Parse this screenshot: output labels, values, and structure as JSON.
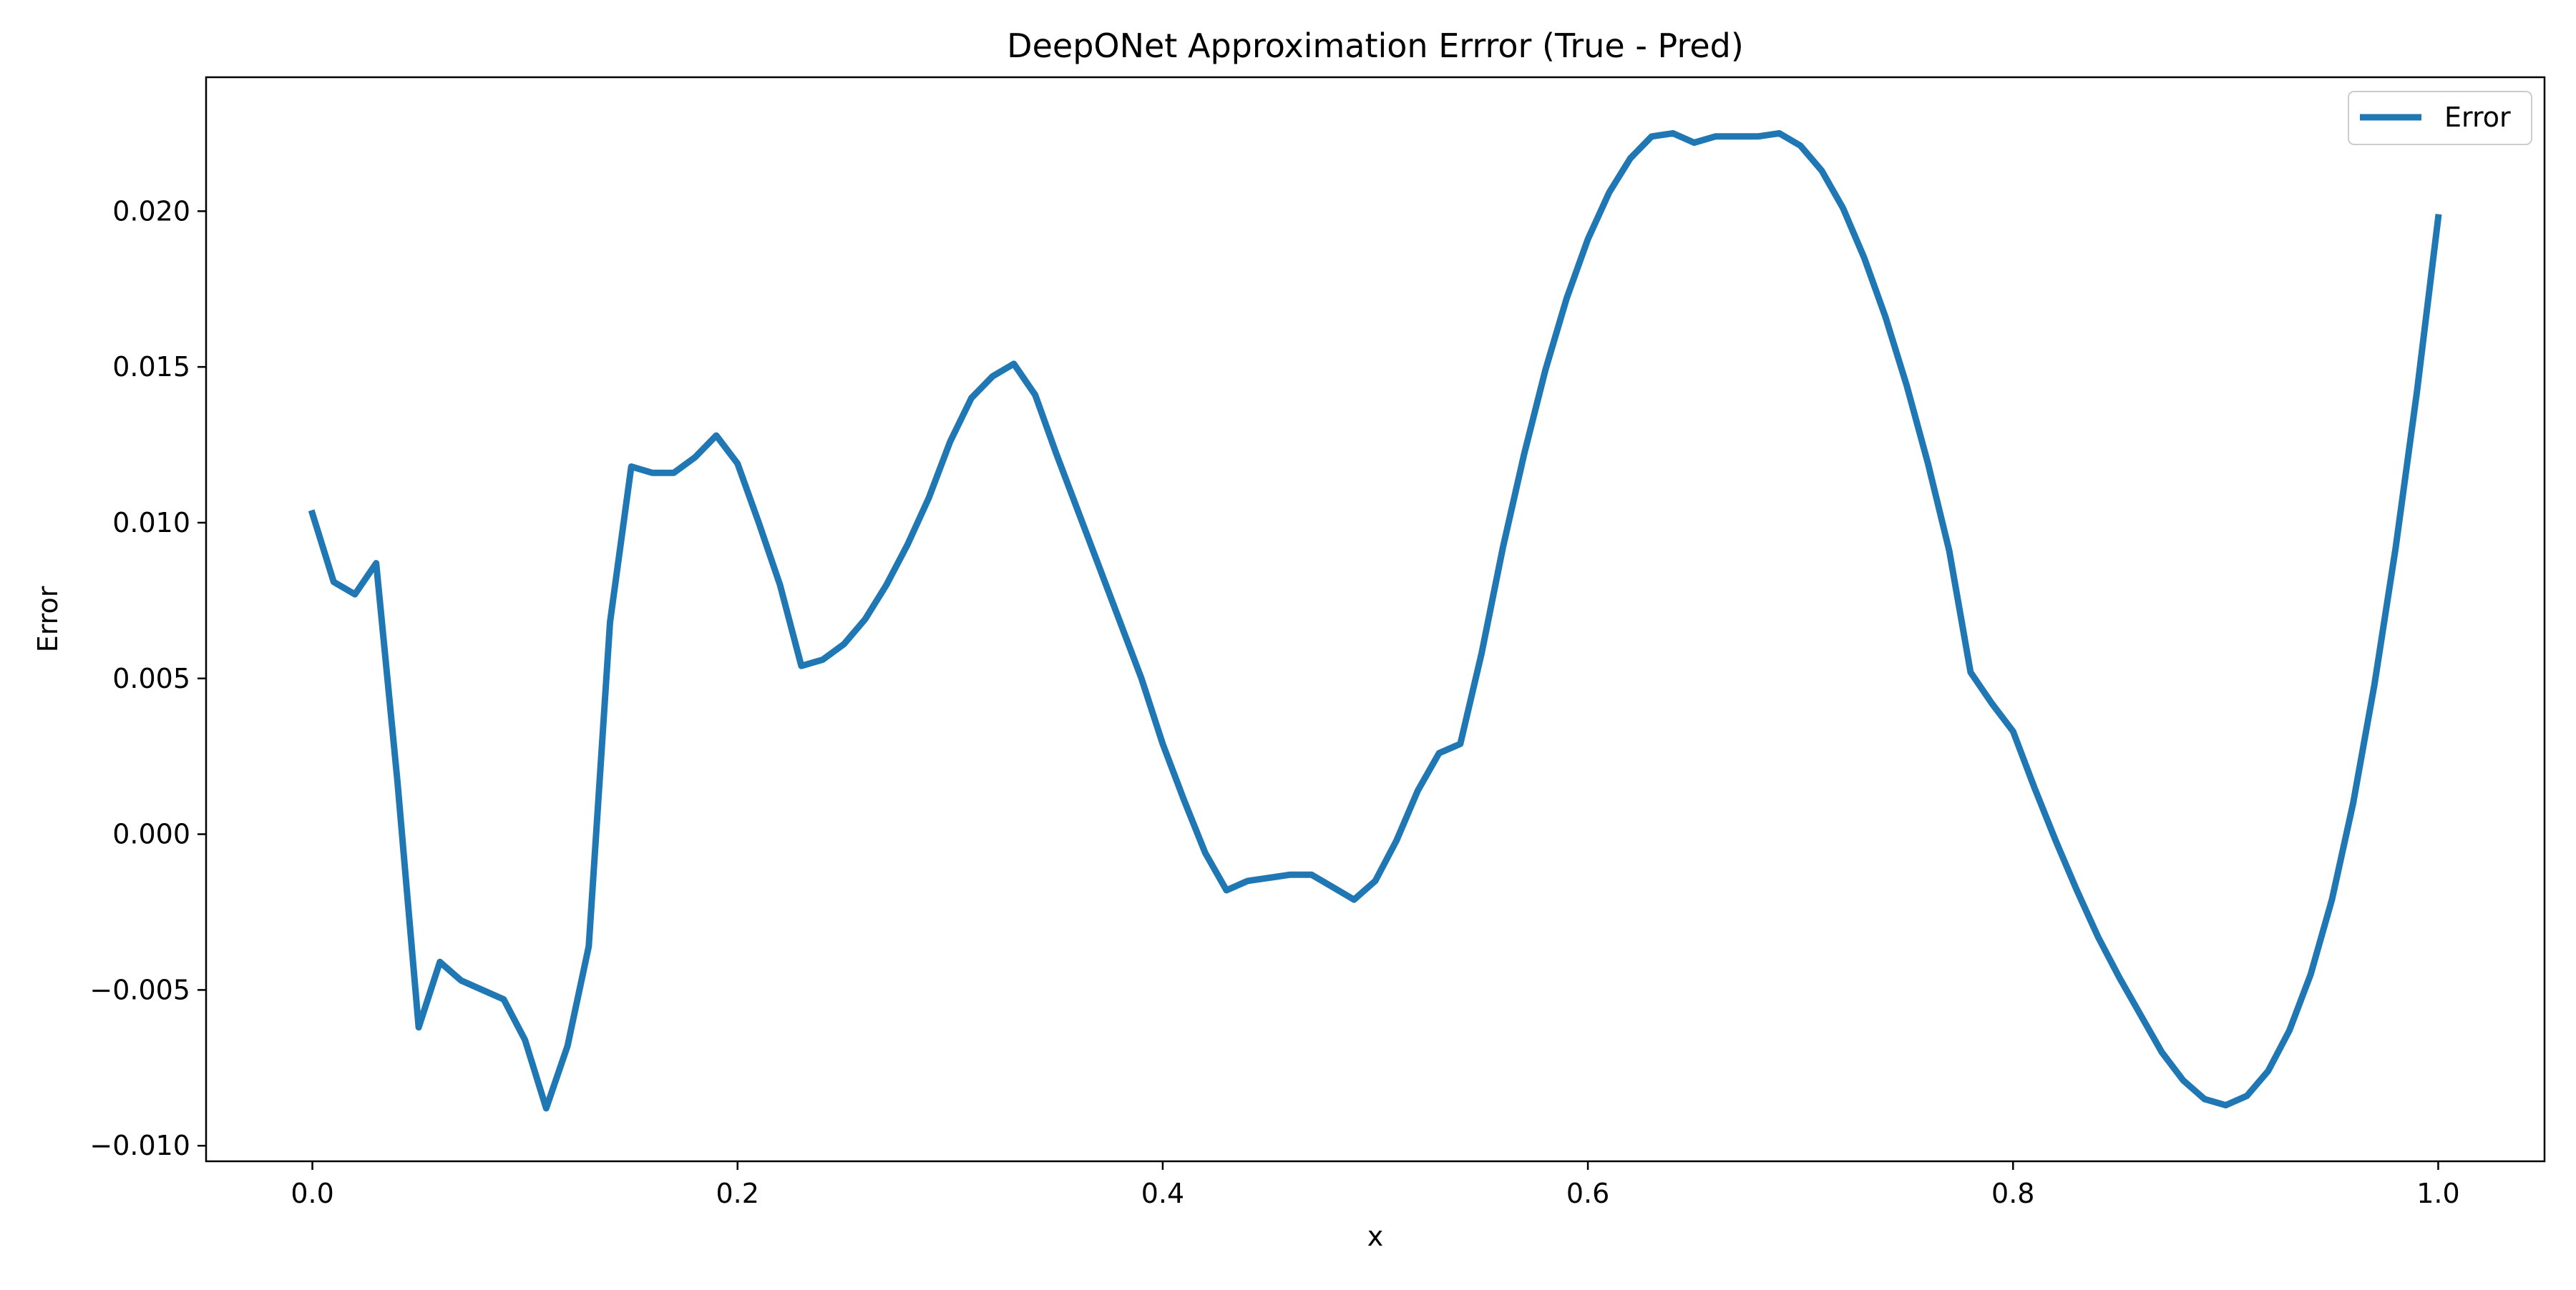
{
  "chart_data": {
    "type": "line",
    "title": "DeepONet Approximation Errror (True - Pred)",
    "xlabel": "x",
    "ylabel": "Error",
    "xlim": [
      -0.05,
      1.05
    ],
    "ylim": [
      -0.0105,
      0.0243
    ],
    "xticks": [
      0.0,
      0.2,
      0.4,
      0.6,
      0.8,
      1.0
    ],
    "xtick_labels": [
      "0.0",
      "0.2",
      "0.4",
      "0.6",
      "0.8",
      "1.0"
    ],
    "yticks": [
      -0.01,
      -0.005,
      0.0,
      0.005,
      0.01,
      0.015,
      0.02
    ],
    "ytick_labels": [
      "−0.010",
      "−0.005",
      "0.000",
      "0.005",
      "0.010",
      "0.015",
      "0.020"
    ],
    "grid": false,
    "legend_position": "top-right",
    "series": [
      {
        "name": "Error",
        "color": "#1f77b4",
        "x": [
          0.0,
          0.01,
          0.02,
          0.03,
          0.04,
          0.05,
          0.06,
          0.07,
          0.08,
          0.09,
          0.1,
          0.11,
          0.12,
          0.13,
          0.14,
          0.15,
          0.16,
          0.17,
          0.18,
          0.19,
          0.2,
          0.21,
          0.22,
          0.23,
          0.24,
          0.25,
          0.26,
          0.27,
          0.28,
          0.29,
          0.3,
          0.31,
          0.32,
          0.33,
          0.34,
          0.35,
          0.36,
          0.37,
          0.38,
          0.39,
          0.4,
          0.41,
          0.42,
          0.43,
          0.44,
          0.45,
          0.46,
          0.47,
          0.48,
          0.49,
          0.5,
          0.51,
          0.52,
          0.53,
          0.54,
          0.55,
          0.56,
          0.57,
          0.58,
          0.59,
          0.6,
          0.61,
          0.62,
          0.63,
          0.64,
          0.65,
          0.66,
          0.67,
          0.68,
          0.69,
          0.7,
          0.71,
          0.72,
          0.73,
          0.74,
          0.75,
          0.76,
          0.77,
          0.78,
          0.79,
          0.8,
          0.81,
          0.82,
          0.83,
          0.84,
          0.85,
          0.86,
          0.87,
          0.88,
          0.89,
          0.9,
          0.91,
          0.92,
          0.93,
          0.94,
          0.95,
          0.96,
          0.97,
          0.98,
          0.99,
          1.0
        ],
        "y": [
          0.0103,
          0.0081,
          0.0077,
          0.0087,
          0.0017,
          -0.0062,
          -0.0041,
          -0.0047,
          -0.005,
          -0.0053,
          -0.0066,
          -0.0088,
          -0.0068,
          -0.0036,
          0.0068,
          0.0118,
          0.0116,
          0.0116,
          0.0121,
          0.0128,
          0.0119,
          0.01,
          0.008,
          0.0054,
          0.0056,
          0.0061,
          0.0069,
          0.008,
          0.0093,
          0.0108,
          0.0126,
          0.014,
          0.0147,
          0.0151,
          0.0141,
          0.0122,
          0.0104,
          0.0086,
          0.0068,
          0.005,
          0.0029,
          0.0011,
          -0.0006,
          -0.0018,
          -0.0015,
          -0.0014,
          -0.0013,
          -0.0013,
          -0.0017,
          -0.0021,
          -0.0015,
          -0.0002,
          0.0014,
          0.0026,
          0.0029,
          0.0058,
          0.0092,
          0.0122,
          0.0149,
          0.0172,
          0.0191,
          0.0206,
          0.0217,
          0.0224,
          0.0225,
          0.0222,
          0.0224,
          0.0224,
          0.0224,
          0.0225,
          0.0221,
          0.0213,
          0.0201,
          0.0185,
          0.0166,
          0.0144,
          0.0119,
          0.0091,
          0.0052,
          0.0042,
          0.0033,
          0.0015,
          -0.0002,
          -0.0018,
          -0.0033,
          -0.0046,
          -0.0058,
          -0.007,
          -0.0079,
          -0.0085,
          -0.0087,
          -0.0084,
          -0.0076,
          -0.0063,
          -0.0045,
          -0.0021,
          0.001,
          0.0048,
          0.0092,
          0.0142,
          0.0198
        ]
      }
    ]
  }
}
